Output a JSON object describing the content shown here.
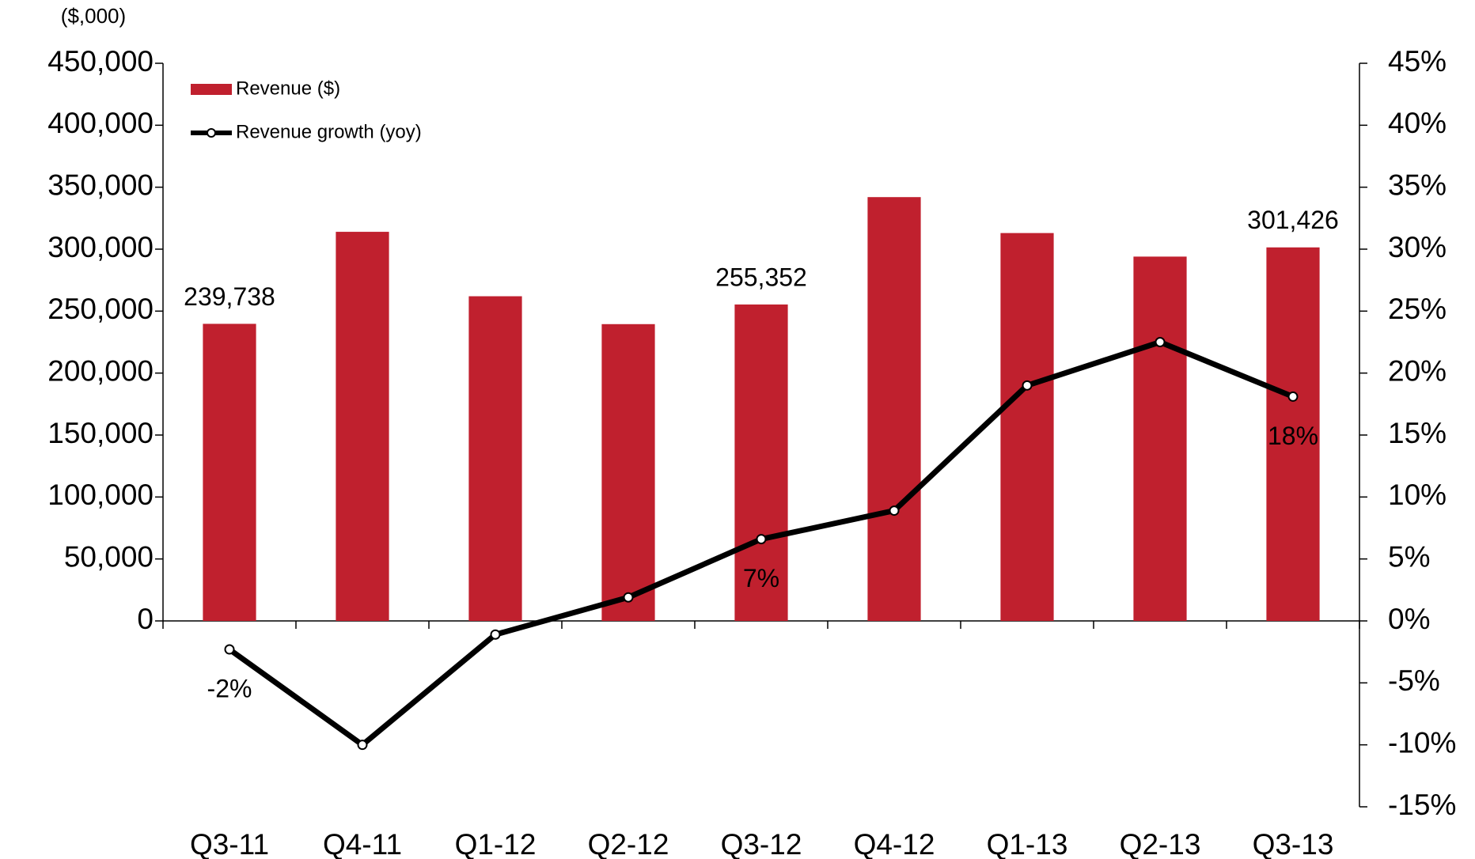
{
  "chart_data": {
    "type": "bar",
    "y_axis_unit": "($,000)",
    "categories": [
      "Q3-11",
      "Q4-11",
      "Q1-12",
      "Q2-12",
      "Q3-12",
      "Q4-12",
      "Q1-13",
      "Q2-13",
      "Q3-13"
    ],
    "series": [
      {
        "name": "Revenue ($)",
        "type": "bar",
        "color": "#c0202e",
        "values": [
          239738,
          314000,
          262000,
          239500,
          255352,
          342000,
          313000,
          294000,
          301426
        ],
        "value_labels": [
          "239,738",
          null,
          null,
          null,
          "255,352",
          null,
          null,
          null,
          "301,426"
        ]
      },
      {
        "name": "Revenue growth (yoy)",
        "type": "line",
        "axis": "y2",
        "color": "#000000",
        "values": [
          -2.3,
          -10,
          -1.1,
          1.9,
          6.6,
          8.9,
          19.0,
          22.5,
          18.1
        ],
        "value_labels": [
          "-2%",
          null,
          null,
          null,
          "7%",
          null,
          null,
          null,
          "18%"
        ]
      }
    ],
    "ylim": [
      0,
      450000
    ],
    "yticks": [
      0,
      {
        "value": 50000,
        "label": "50,000"
      },
      {
        "value": 100000,
        "label": "100,000"
      },
      {
        "value": 150000,
        "label": "150,000"
      },
      {
        "value": 200000,
        "label": "200,000"
      },
      {
        "value": 250000,
        "label": "250,000"
      },
      {
        "value": 300000,
        "label": "300,000"
      },
      {
        "value": 350000,
        "label": "350,000"
      },
      {
        "value": 400000,
        "label": "400,000"
      },
      {
        "value": 450000,
        "label": "450,000"
      }
    ],
    "y2lim": [
      -15,
      45
    ],
    "y2ticks": [
      {
        "value": -15,
        "label": "-15%"
      },
      {
        "value": -10,
        "label": "-10%"
      },
      {
        "value": -5,
        "label": "-5%"
      },
      {
        "value": 0,
        "label": "0%"
      },
      {
        "value": 5,
        "label": "5%"
      },
      {
        "value": 10,
        "label": "10%"
      },
      {
        "value": 15,
        "label": "15%"
      },
      {
        "value": 20,
        "label": "20%"
      },
      {
        "value": 25,
        "label": "25%"
      },
      {
        "value": 30,
        "label": "30%"
      },
      {
        "value": 35,
        "label": "35%"
      },
      {
        "value": 40,
        "label": "40%"
      },
      {
        "value": 45,
        "label": "45%"
      }
    ],
    "legend": "top-left",
    "grid": false
  }
}
